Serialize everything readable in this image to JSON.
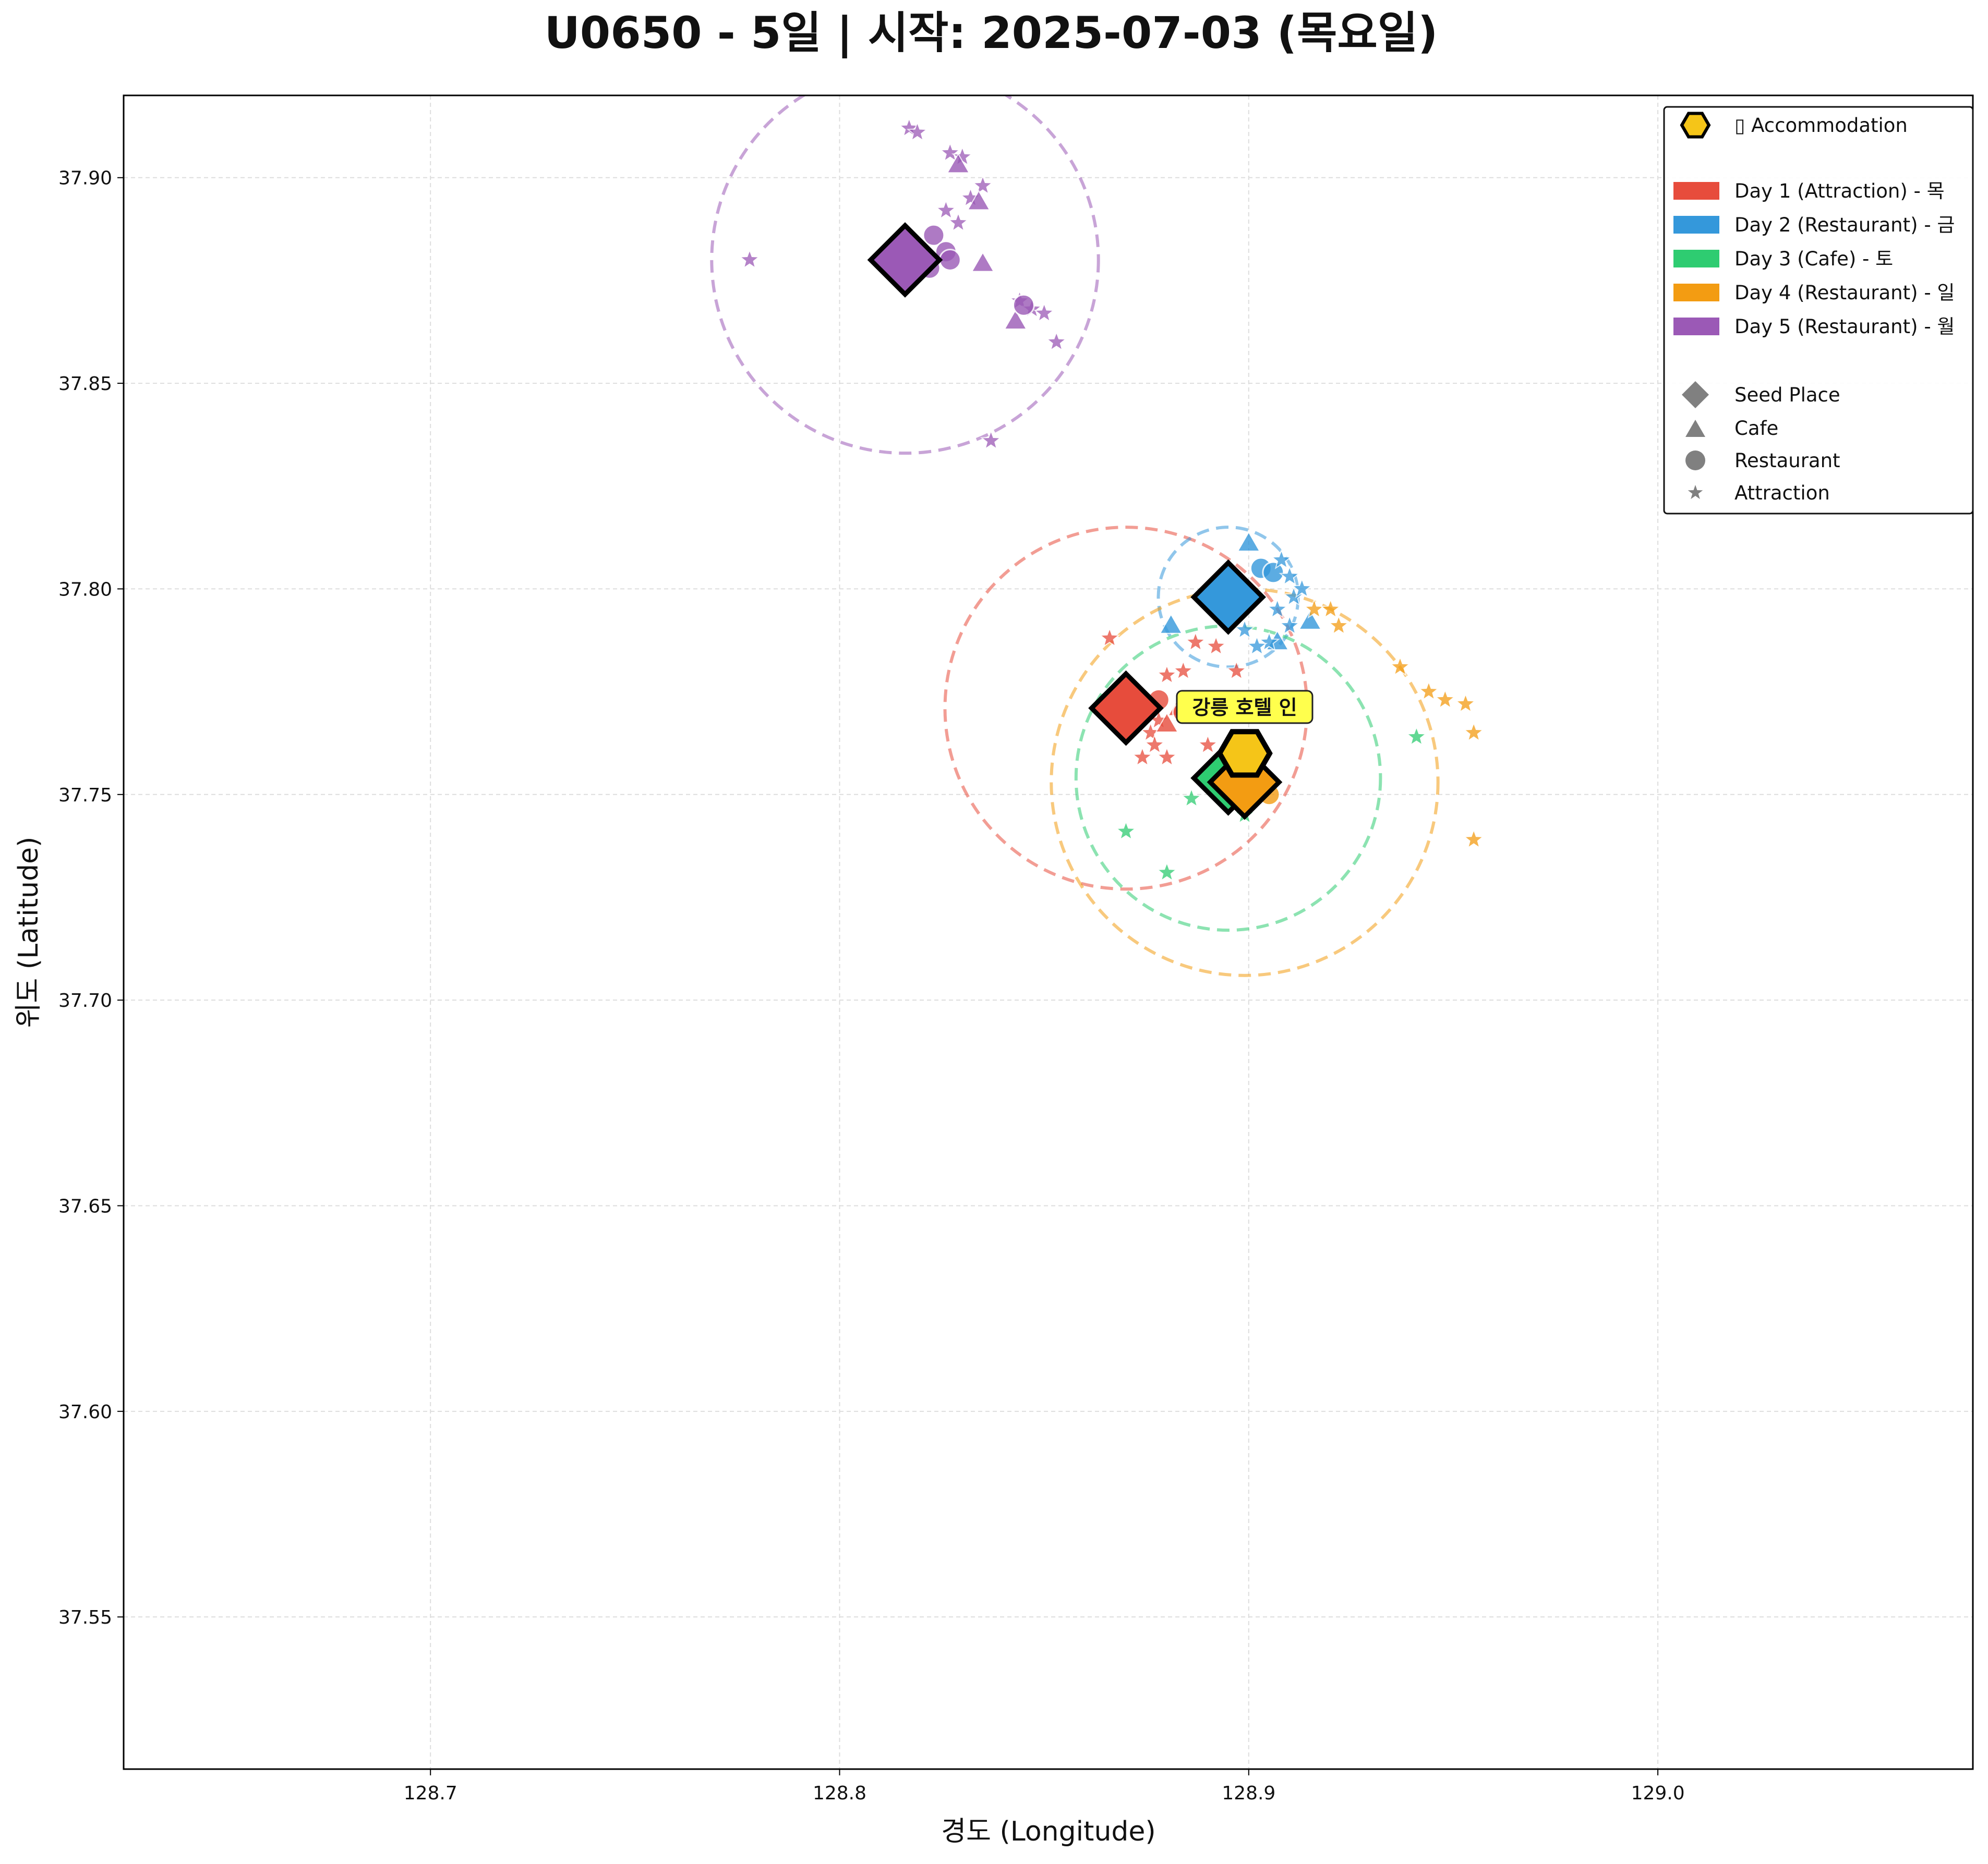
{
  "chart_data": {
    "type": "scatter",
    "title": "U0650 - 5일 | 시작: 2025-07-03 (목요일)",
    "xlabel": "경도 (Longitude)",
    "ylabel": "위도 (Latitude)",
    "xlim": [
      128.625,
      129.077
    ],
    "ylim": [
      37.513,
      37.92
    ],
    "xticks": [
      128.7,
      128.8,
      128.9,
      129.0
    ],
    "xtick_labels": [
      "128.7",
      "128.8",
      "128.9",
      "129.0"
    ],
    "yticks": [
      37.55,
      37.6,
      37.65,
      37.7,
      37.75,
      37.8,
      37.85,
      37.9
    ],
    "ytick_labels": [
      "37.55",
      "37.60",
      "37.65",
      "37.70",
      "37.75",
      "37.80",
      "37.85",
      "37.90"
    ],
    "grid": true,
    "legend_position": "top-right",
    "legend": {
      "accommodation": "▯ Accommodation",
      "days": [
        "Day 1 (Attraction) - 목",
        "Day 2 (Restaurant) - 금",
        "Day 3 (Cafe) - 토",
        "Day 4 (Restaurant) - 일",
        "Day 5 (Restaurant) - 월"
      ],
      "markers": [
        "Seed Place",
        "Cafe",
        "Restaurant",
        "Attraction"
      ]
    },
    "accommodation": {
      "label": "강릉 호텔 인",
      "lon": 128.899,
      "lat": 37.76,
      "color": "#f5c518"
    },
    "series": [
      {
        "name": "Day 1 (Attraction) - 목",
        "color": "#e74c3c",
        "seed": {
          "lon": 128.87,
          "lat": 37.771
        },
        "radius_lat": 0.044,
        "points": [
          {
            "lon": 128.866,
            "lat": 37.788,
            "type": "attraction"
          },
          {
            "lon": 128.88,
            "lat": 37.779,
            "type": "attraction"
          },
          {
            "lon": 128.884,
            "lat": 37.78,
            "type": "attraction"
          },
          {
            "lon": 128.887,
            "lat": 37.787,
            "type": "attraction"
          },
          {
            "lon": 128.892,
            "lat": 37.786,
            "type": "attraction"
          },
          {
            "lon": 128.897,
            "lat": 37.78,
            "type": "attraction"
          },
          {
            "lon": 128.878,
            "lat": 37.768,
            "type": "attraction"
          },
          {
            "lon": 128.876,
            "lat": 37.765,
            "type": "attraction"
          },
          {
            "lon": 128.877,
            "lat": 37.762,
            "type": "attraction"
          },
          {
            "lon": 128.874,
            "lat": 37.759,
            "type": "attraction"
          },
          {
            "lon": 128.88,
            "lat": 37.759,
            "type": "attraction"
          },
          {
            "lon": 128.89,
            "lat": 37.762,
            "type": "attraction"
          },
          {
            "lon": 128.88,
            "lat": 37.767,
            "type": "cafe"
          },
          {
            "lon": 128.883,
            "lat": 37.771,
            "type": "cafe"
          },
          {
            "lon": 128.878,
            "lat": 37.773,
            "type": "restaurant"
          },
          {
            "lon": 128.884,
            "lat": 37.77,
            "type": "restaurant"
          }
        ]
      },
      {
        "name": "Day 2 (Restaurant) - 금",
        "color": "#3498db",
        "seed": {
          "lon": 128.895,
          "lat": 37.798
        },
        "radius_lat": 0.017,
        "points": [
          {
            "lon": 128.9,
            "lat": 37.811,
            "type": "cafe"
          },
          {
            "lon": 128.881,
            "lat": 37.791,
            "type": "cafe"
          },
          {
            "lon": 128.907,
            "lat": 37.787,
            "type": "cafe"
          },
          {
            "lon": 128.915,
            "lat": 37.792,
            "type": "cafe"
          },
          {
            "lon": 128.903,
            "lat": 37.805,
            "type": "restaurant"
          },
          {
            "lon": 128.906,
            "lat": 37.804,
            "type": "restaurant"
          },
          {
            "lon": 128.908,
            "lat": 37.807,
            "type": "attraction"
          },
          {
            "lon": 128.91,
            "lat": 37.803,
            "type": "attraction"
          },
          {
            "lon": 128.911,
            "lat": 37.798,
            "type": "attraction"
          },
          {
            "lon": 128.913,
            "lat": 37.8,
            "type": "attraction"
          },
          {
            "lon": 128.91,
            "lat": 37.791,
            "type": "attraction"
          },
          {
            "lon": 128.905,
            "lat": 37.787,
            "type": "attraction"
          },
          {
            "lon": 128.902,
            "lat": 37.786,
            "type": "attraction"
          },
          {
            "lon": 128.899,
            "lat": 37.79,
            "type": "attraction"
          },
          {
            "lon": 128.907,
            "lat": 37.795,
            "type": "attraction"
          }
        ]
      },
      {
        "name": "Day 3 (Cafe) - 토",
        "color": "#2ecc71",
        "seed": {
          "lon": 128.895,
          "lat": 37.754
        },
        "radius_lat": 0.037,
        "points": [
          {
            "lon": 128.87,
            "lat": 37.741,
            "type": "attraction"
          },
          {
            "lon": 128.88,
            "lat": 37.731,
            "type": "attraction"
          },
          {
            "lon": 128.886,
            "lat": 37.749,
            "type": "attraction"
          },
          {
            "lon": 128.892,
            "lat": 37.751,
            "type": "attraction"
          },
          {
            "lon": 128.899,
            "lat": 37.745,
            "type": "attraction"
          },
          {
            "lon": 128.941,
            "lat": 37.764,
            "type": "attraction"
          },
          {
            "lon": 128.893,
            "lat": 37.756,
            "type": "cafe"
          }
        ]
      },
      {
        "name": "Day 4 (Restaurant) - 일",
        "color": "#f39c12",
        "seed": {
          "lon": 128.899,
          "lat": 37.753
        },
        "radius_lat": 0.047,
        "points": [
          {
            "lon": 128.916,
            "lat": 37.795,
            "type": "attraction"
          },
          {
            "lon": 128.92,
            "lat": 37.795,
            "type": "attraction"
          },
          {
            "lon": 128.922,
            "lat": 37.791,
            "type": "attraction"
          },
          {
            "lon": 128.937,
            "lat": 37.781,
            "type": "attraction"
          },
          {
            "lon": 128.944,
            "lat": 37.775,
            "type": "attraction"
          },
          {
            "lon": 128.948,
            "lat": 37.773,
            "type": "attraction"
          },
          {
            "lon": 128.953,
            "lat": 37.772,
            "type": "attraction"
          },
          {
            "lon": 128.955,
            "lat": 37.765,
            "type": "attraction"
          },
          {
            "lon": 128.955,
            "lat": 37.739,
            "type": "attraction"
          },
          {
            "lon": 128.905,
            "lat": 37.75,
            "type": "restaurant"
          }
        ]
      },
      {
        "name": "Day 5 (Restaurant) - 월",
        "color": "#9b59b6",
        "seed": {
          "lon": 128.816,
          "lat": 37.88
        },
        "radius_lat": 0.047,
        "points": [
          {
            "lon": 128.817,
            "lat": 37.912,
            "type": "attraction"
          },
          {
            "lon": 128.819,
            "lat": 37.911,
            "type": "attraction"
          },
          {
            "lon": 128.827,
            "lat": 37.906,
            "type": "attraction"
          },
          {
            "lon": 128.83,
            "lat": 37.905,
            "type": "attraction"
          },
          {
            "lon": 128.835,
            "lat": 37.898,
            "type": "attraction"
          },
          {
            "lon": 128.826,
            "lat": 37.892,
            "type": "attraction"
          },
          {
            "lon": 128.829,
            "lat": 37.889,
            "type": "attraction"
          },
          {
            "lon": 128.832,
            "lat": 37.895,
            "type": "attraction"
          },
          {
            "lon": 128.778,
            "lat": 37.88,
            "type": "attraction"
          },
          {
            "lon": 128.844,
            "lat": 37.87,
            "type": "attraction"
          },
          {
            "lon": 128.847,
            "lat": 37.868,
            "type": "attraction"
          },
          {
            "lon": 128.85,
            "lat": 37.867,
            "type": "attraction"
          },
          {
            "lon": 128.853,
            "lat": 37.86,
            "type": "attraction"
          },
          {
            "lon": 128.837,
            "lat": 37.836,
            "type": "attraction"
          },
          {
            "lon": 128.829,
            "lat": 37.903,
            "type": "cafe"
          },
          {
            "lon": 128.834,
            "lat": 37.894,
            "type": "cafe"
          },
          {
            "lon": 128.835,
            "lat": 37.879,
            "type": "cafe"
          },
          {
            "lon": 128.843,
            "lat": 37.865,
            "type": "cafe"
          },
          {
            "lon": 128.823,
            "lat": 37.886,
            "type": "restaurant"
          },
          {
            "lon": 128.826,
            "lat": 37.882,
            "type": "restaurant"
          },
          {
            "lon": 128.827,
            "lat": 37.88,
            "type": "restaurant"
          },
          {
            "lon": 128.822,
            "lat": 37.878,
            "type": "restaurant"
          },
          {
            "lon": 128.845,
            "lat": 37.869,
            "type": "restaurant"
          }
        ]
      }
    ]
  }
}
